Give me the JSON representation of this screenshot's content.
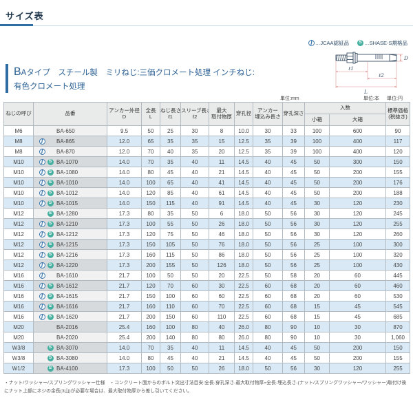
{
  "page_title": "サイズ表",
  "legend": {
    "j_icon": "J",
    "s_icon": "S",
    "j_label": "…JCAA認証品",
    "s_label": "…SHASE-S規格品"
  },
  "product": {
    "title_b": "B",
    "title_rest": "Aタイプ　スチール製　ミリねじ:三価クロメート処理 インチねじ:",
    "title_line2": "有色クロメート処理"
  },
  "diagram": {
    "labels": {
      "d": "D",
      "l1": "ℓ1",
      "l2": "ℓ2",
      "L": "L"
    }
  },
  "units": {
    "mm": "単位:mm",
    "hon": "単位:本",
    "yen": "単位:円"
  },
  "table": {
    "headers": {
      "size": "ねじの呼び",
      "part": "品番",
      "anchor_od": "アンカー外径",
      "anchor_od_sym": "D",
      "length": "全長",
      "length_sym": "L",
      "thread_len": "ねじ長さ",
      "thread_len_sym": "ℓ1",
      "sleeve_len": "スリーブ長さ",
      "sleeve_len_sym": "ℓ2",
      "max_thk_1": "最大",
      "max_thk_2": "取付物厚",
      "hole_dia": "穿孔径",
      "embed_1": "アンカー",
      "embed_2": "埋込み長さ",
      "hole_depth": "穿孔深さ",
      "qty": "入数",
      "qty_small": "小箱",
      "qty_large": "大箱",
      "price_1": "標準価格",
      "price_2": "(税抜き)"
    },
    "rows": [
      {
        "size": "M6",
        "icons": [],
        "part": "BA-650",
        "values": [
          "9.5",
          "50",
          "25",
          "30",
          "8",
          "10.0",
          "30",
          "33",
          "100",
          "600",
          "90"
        ]
      },
      {
        "size": "M8",
        "icons": [
          "J"
        ],
        "part": "BA-865",
        "values": [
          "12.0",
          "65",
          "35",
          "35",
          "15",
          "12.5",
          "35",
          "39",
          "100",
          "400",
          "117"
        ]
      },
      {
        "size": "M8",
        "icons": [
          "J"
        ],
        "part": "BA-870",
        "values": [
          "12.0",
          "70",
          "40",
          "35",
          "20",
          "12.5",
          "35",
          "39",
          "100",
          "400",
          "120"
        ]
      },
      {
        "size": "M10",
        "icons": [
          "J",
          "S"
        ],
        "part": "BA-1070",
        "values": [
          "14.0",
          "70",
          "35",
          "40",
          "11",
          "14.5",
          "40",
          "45",
          "50",
          "300",
          "150"
        ]
      },
      {
        "size": "M10",
        "icons": [
          "J",
          "S"
        ],
        "part": "BA-1080",
        "values": [
          "14.0",
          "80",
          "45",
          "40",
          "21",
          "14.5",
          "40",
          "45",
          "50",
          "200",
          "155"
        ]
      },
      {
        "size": "M10",
        "icons": [
          "J",
          "S"
        ],
        "part": "BA-1010",
        "values": [
          "14.0",
          "100",
          "65",
          "40",
          "41",
          "14.5",
          "40",
          "45",
          "50",
          "200",
          "176"
        ]
      },
      {
        "size": "M10",
        "icons": [
          "J",
          "S"
        ],
        "part": "BA-1012",
        "values": [
          "14.0",
          "120",
          "85",
          "40",
          "61",
          "14.5",
          "40",
          "45",
          "50",
          "200",
          "188"
        ]
      },
      {
        "size": "M10",
        "icons": [
          "J",
          "S"
        ],
        "part": "BA-1015",
        "values": [
          "14.0",
          "150",
          "115",
          "40",
          "91",
          "14.5",
          "40",
          "45",
          "30",
          "120",
          "230"
        ]
      },
      {
        "size": "M12",
        "icons": [
          "S"
        ],
        "part": "BA-1280",
        "values": [
          "17.3",
          "80",
          "35",
          "50",
          "6",
          "18.0",
          "50",
          "56",
          "30",
          "120",
          "245"
        ]
      },
      {
        "size": "M12",
        "icons": [
          "J",
          "S"
        ],
        "part": "BA-1210",
        "values": [
          "17.3",
          "100",
          "55",
          "50",
          "26",
          "18.0",
          "50",
          "56",
          "30",
          "120",
          "255"
        ]
      },
      {
        "size": "M12",
        "icons": [
          "J",
          "S"
        ],
        "part": "BA-1212",
        "values": [
          "17.3",
          "120",
          "75",
          "50",
          "46",
          "18.0",
          "50",
          "56",
          "30",
          "120",
          "260"
        ]
      },
      {
        "size": "M12",
        "icons": [
          "J",
          "S"
        ],
        "part": "BA-1215",
        "values": [
          "17.3",
          "150",
          "105",
          "50",
          "76",
          "18.0",
          "50",
          "56",
          "25",
          "100",
          "300"
        ]
      },
      {
        "size": "M12",
        "icons": [
          "J",
          "S"
        ],
        "part": "BA-1216",
        "values": [
          "17.3",
          "160",
          "115",
          "50",
          "86",
          "18.0",
          "50",
          "56",
          "25",
          "100",
          "320"
        ]
      },
      {
        "size": "M12",
        "icons": [
          "J",
          "S"
        ],
        "part": "BA-1220",
        "values": [
          "17.3",
          "200",
          "155",
          "50",
          "126",
          "18.0",
          "50",
          "56",
          "25",
          "100",
          "430"
        ]
      },
      {
        "size": "M16",
        "icons": [
          "J"
        ],
        "part": "BA-1610",
        "values": [
          "21.7",
          "100",
          "50",
          "50",
          "20",
          "22.5",
          "50",
          "58",
          "20",
          "60",
          "445"
        ]
      },
      {
        "size": "M16",
        "icons": [
          "J",
          "S"
        ],
        "part": "BA-1612",
        "values": [
          "21.7",
          "120",
          "70",
          "60",
          "30",
          "22.5",
          "60",
          "68",
          "20",
          "60",
          "460"
        ]
      },
      {
        "size": "M16",
        "icons": [
          "J",
          "S"
        ],
        "part": "BA-1615",
        "values": [
          "21.7",
          "150",
          "100",
          "60",
          "60",
          "22.5",
          "60",
          "68",
          "20",
          "60",
          "530"
        ]
      },
      {
        "size": "M16",
        "icons": [
          "J",
          "S"
        ],
        "part": "BA-1616",
        "values": [
          "21.7",
          "160",
          "110",
          "60",
          "70",
          "22.5",
          "60",
          "68",
          "15",
          "45",
          "545"
        ]
      },
      {
        "size": "M16",
        "icons": [
          "J",
          "S"
        ],
        "part": "BA-1620",
        "values": [
          "21.7",
          "200",
          "150",
          "60",
          "110",
          "22.5",
          "60",
          "68",
          "15",
          "45",
          "685"
        ]
      },
      {
        "size": "M20",
        "icons": [],
        "part": "BA-2016",
        "values": [
          "25.4",
          "160",
          "100",
          "80",
          "40",
          "26.0",
          "80",
          "90",
          "10",
          "30",
          "870"
        ]
      },
      {
        "size": "M20",
        "icons": [],
        "part": "BA-2020",
        "values": [
          "25.4",
          "200",
          "140",
          "80",
          "80",
          "26.0",
          "80",
          "90",
          "10",
          "30",
          "1,060"
        ]
      },
      {
        "size": "W3/8",
        "icons": [
          "S"
        ],
        "part": "BA-3070",
        "values": [
          "14.0",
          "70",
          "35",
          "40",
          "11",
          "14.5",
          "40",
          "45",
          "50",
          "200",
          "150"
        ]
      },
      {
        "size": "W3/8",
        "icons": [
          "S"
        ],
        "part": "BA-3080",
        "values": [
          "14.0",
          "80",
          "45",
          "40",
          "21",
          "14.5",
          "40",
          "45",
          "50",
          "200",
          "155"
        ]
      },
      {
        "size": "W1/2",
        "icons": [
          "S"
        ],
        "part": "BA-4100",
        "values": [
          "17.3",
          "100",
          "50",
          "50",
          "26",
          "18.0",
          "50",
          "56",
          "30",
          "120",
          "255"
        ]
      }
    ]
  },
  "footnote": "・ナット/ワッシャー/スプリングワッシャー仕様　・コンクリート面からのボルト突出寸法目安:全長-穿孔深さ-最大取付物厚=全長-埋込長さ-(ナット/スプリングワッシャー/ワッシャー)取付け後にナット上部にネジの余長(3山)が必要な場合は、最大取付物厚から差し引いてください。",
  "colors": {
    "accent_blue": "#2e6da4",
    "row_blue": "#d9eaf6",
    "header_gray": "#e9eaea",
    "jcaa_blue": "#3a76ad",
    "shase_teal": "#45b0a0",
    "dim_line_red": "#dc9090"
  }
}
